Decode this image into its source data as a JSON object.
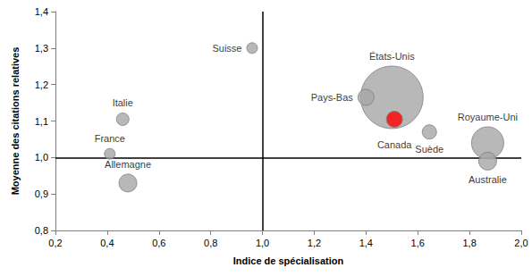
{
  "chart_data": {
    "type": "scatter",
    "xlabel": "Indice de spécialisation",
    "ylabel": "Moyenne des citations relatives",
    "labels": [
      "Suisse",
      "Italie",
      "France",
      "Allemagne",
      "États-Unis",
      "Pays-Bas",
      "Canada",
      "Suède",
      "Royaume-Uni",
      "Australie"
    ],
    "x": [
      0.96,
      0.46,
      0.41,
      0.48,
      1.5,
      1.4,
      1.51,
      1.645,
      1.87,
      1.87
    ],
    "values": [
      1.3,
      1.105,
      1.01,
      0.93,
      1.165,
      1.165,
      1.105,
      1.07,
      1.04,
      0.99
    ],
    "sizes": [
      36,
      49,
      36,
      100,
      1225,
      81,
      81,
      64,
      324,
      100
    ],
    "colors": [
      "#a6a6a6",
      "#a6a6a6",
      "#a6a6a6",
      "#a6a6a6",
      "#a6a6a6",
      "#a6a6a6",
      "#ff0000",
      "#a6a6a6",
      "#a6a6a6",
      "#a6a6a6"
    ],
    "xlim": [
      0.2,
      2.0
    ],
    "xticks": [
      {
        "value": 0.2,
        "label": "0,2"
      },
      {
        "value": 0.4,
        "label": "0,4"
      },
      {
        "value": 0.6,
        "label": "0,6"
      },
      {
        "value": 0.8,
        "label": "0,8"
      },
      {
        "value": 1.0,
        "label": "1,0"
      },
      {
        "value": 1.2,
        "label": "1,2"
      },
      {
        "value": 1.4,
        "label": "1,4"
      },
      {
        "value": 1.6,
        "label": "1,6"
      },
      {
        "value": 1.8,
        "label": "1,8"
      },
      {
        "value": 2.0,
        "label": "2,0"
      }
    ],
    "ylim": [
      0.8,
      1.4
    ],
    "yticks": [
      {
        "value": 0.8,
        "label": "0,8"
      },
      {
        "value": 0.9,
        "label": "0,9"
      },
      {
        "value": 1.0,
        "label": "1,0"
      },
      {
        "value": 1.1,
        "label": "1,1"
      },
      {
        "value": 1.2,
        "label": "1,2"
      },
      {
        "value": 1.3,
        "label": "1,3"
      },
      {
        "value": 1.4,
        "label": "1,4"
      }
    ],
    "ref_lines": {
      "x": 1.0,
      "y": 1.0
    },
    "grid": false
  }
}
